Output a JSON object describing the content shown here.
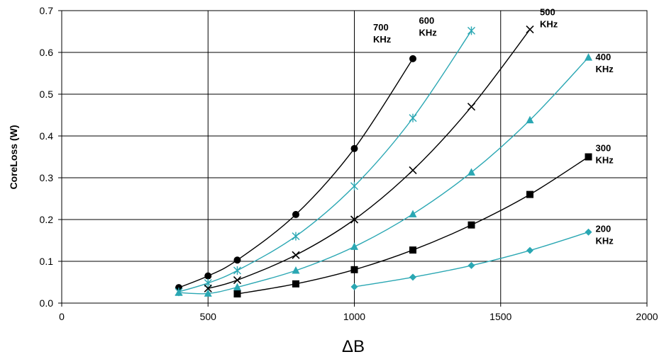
{
  "chart_data": {
    "type": "line",
    "title": "",
    "xlabel": "ΔB",
    "ylabel": "CoreLoss (W)",
    "xlim": [
      0,
      2000
    ],
    "ylim": [
      0,
      0.7
    ],
    "x_ticks": [
      "0",
      "500",
      "1000",
      "1500",
      "2000"
    ],
    "y_ticks": [
      "0.0",
      "0.1",
      "0.2",
      "0.3",
      "0.4",
      "0.5",
      "0.6",
      "0.7"
    ],
    "grid": true,
    "legend": "none",
    "series": [
      {
        "name": "700 KHz",
        "label_lines": [
          "700",
          "KHz"
        ],
        "color": "#000000",
        "marker": "circle",
        "x": [
          400,
          500,
          600,
          800,
          1000,
          1200
        ],
        "y": [
          0.037,
          0.065,
          0.103,
          0.212,
          0.37,
          0.585
        ]
      },
      {
        "name": "600 KHz",
        "label_lines": [
          "600",
          "KHz"
        ],
        "color": "#2aa7b3",
        "marker": "asterisk",
        "x": [
          400,
          500,
          600,
          800,
          1000,
          1200,
          1400
        ],
        "y": [
          0.027,
          0.048,
          0.078,
          0.16,
          0.28,
          0.443,
          0.652
        ]
      },
      {
        "name": "500 KHz",
        "label_lines": [
          "500",
          "KHz"
        ],
        "color": "#000000",
        "marker": "x",
        "x": [
          500,
          600,
          800,
          1000,
          1200,
          1400,
          1600
        ],
        "y": [
          0.035,
          0.055,
          0.115,
          0.2,
          0.318,
          0.47,
          0.655
        ]
      },
      {
        "name": "400 KHz",
        "label_lines": [
          "400",
          "KHz"
        ],
        "color": "#2aa7b3",
        "marker": "triangle",
        "x": [
          400,
          500,
          600,
          800,
          1000,
          1200,
          1400,
          1600,
          1800
        ],
        "y": [
          0.025,
          0.023,
          0.038,
          0.078,
          0.135,
          0.213,
          0.313,
          0.438,
          0.588
        ]
      },
      {
        "name": "300 KHz",
        "label_lines": [
          "300",
          "KHz"
        ],
        "color": "#000000",
        "marker": "square",
        "x": [
          600,
          800,
          1000,
          1200,
          1400,
          1600,
          1800
        ],
        "y": [
          0.022,
          0.046,
          0.08,
          0.127,
          0.187,
          0.26,
          0.35
        ]
      },
      {
        "name": "200 KHz",
        "label_lines": [
          "200",
          "KHz"
        ],
        "color": "#2aa7b3",
        "marker": "diamond",
        "x": [
          1000,
          1200,
          1400,
          1600,
          1800
        ],
        "y": [
          0.039,
          0.062,
          0.09,
          0.126,
          0.17
        ]
      }
    ]
  }
}
